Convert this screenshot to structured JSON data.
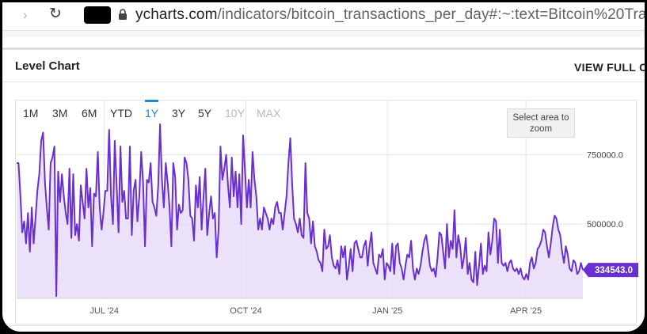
{
  "browser": {
    "url_host": "ycharts.com",
    "url_path": "/indicators/bitcoin_transactions_per_day#:~:text=Bitcoin%20Tra"
  },
  "card": {
    "title": "Level Chart",
    "view_full": "VIEW FULL CHA"
  },
  "ranges": [
    {
      "label": "1M",
      "state": "normal"
    },
    {
      "label": "3M",
      "state": "normal"
    },
    {
      "label": "6M",
      "state": "normal"
    },
    {
      "label": "YTD",
      "state": "normal"
    },
    {
      "label": "1Y",
      "state": "active"
    },
    {
      "label": "3Y",
      "state": "normal"
    },
    {
      "label": "5Y",
      "state": "normal"
    },
    {
      "label": "10Y",
      "state": "disabled"
    },
    {
      "label": "MAX",
      "state": "disabled"
    }
  ],
  "zoom_hint": "Select area to zoom",
  "colors": {
    "line": "#6a2fd0",
    "fill": "#e7dcf7",
    "active": "#1a8ad8",
    "grid": "#e3e3e3"
  },
  "chart_data": {
    "type": "area",
    "title": "",
    "xlabel": "",
    "ylabel": "",
    "ylim": [
      232000,
      860000
    ],
    "yticks": [
      {
        "value": 500000,
        "label": "500000.0"
      },
      {
        "value": 750000,
        "label": "750000.0"
      }
    ],
    "xticks": [
      {
        "date": "2024-07-01",
        "label": "JUL '24"
      },
      {
        "date": "2024-10-01",
        "label": "OCT '24"
      },
      {
        "date": "2025-01-01",
        "label": "JAN '25"
      },
      {
        "date": "2025-04-01",
        "label": "APR '25"
      }
    ],
    "xrange": [
      "2024-05-05",
      "2025-05-08"
    ],
    "last_value_label": "334543.0",
    "series": [
      {
        "values": [
          720000,
          720000,
          600000,
          470000,
          510000,
          430000,
          540000,
          400000,
          560000,
          430000,
          520000,
          620000,
          680000,
          800000,
          830000,
          650000,
          560000,
          480000,
          720000,
          740000,
          780000,
          240000,
          690000,
          580000,
          680000,
          600000,
          540000,
          500000,
          700000,
          450000,
          680000,
          460000,
          500000,
          440000,
          640000,
          580000,
          520000,
          700000,
          560000,
          630000,
          420000,
          610000,
          600000,
          760000,
          560000,
          480000,
          540000,
          620000,
          620000,
          840000,
          600000,
          500000,
          800000,
          640000,
          470000,
          780000,
          580000,
          620000,
          520000,
          520000,
          780000,
          460000,
          620000,
          660000,
          510000,
          600000,
          760000,
          650000,
          420000,
          660000,
          650000,
          720000,
          580000,
          560000,
          530000,
          640000,
          900000,
          660000,
          560000,
          720000,
          650000,
          560000,
          420000,
          720000,
          670000,
          480000,
          570000,
          540000,
          550000,
          740000,
          720000,
          660000,
          530000,
          520000,
          440000,
          640000,
          560000,
          670000,
          480000,
          600000,
          700000,
          460000,
          540000,
          600000,
          520000,
          540000,
          380000,
          480000,
          780000,
          660000,
          700000,
          750000,
          640000,
          560000,
          740000,
          600000,
          690000,
          560000,
          680000,
          500000,
          820000,
          690000,
          560000,
          660000,
          560000,
          760000,
          660000,
          600000,
          480000,
          520000,
          480000,
          560000,
          540000,
          520000,
          480000,
          520000,
          500000,
          560000,
          580000,
          540000,
          540000,
          480000,
          540000,
          600000,
          720000,
          810000,
          640000,
          520000,
          500000,
          470000,
          520000,
          460000,
          450000,
          720000,
          540000,
          520000,
          430000,
          510000,
          420000,
          400000,
          370000,
          360000,
          330000,
          480000,
          410000,
          420000,
          460000,
          380000,
          350000,
          340000,
          370000,
          320000,
          420000,
          380000,
          420000,
          300000,
          350000,
          410000,
          330000,
          430000,
          440000,
          410000,
          380000,
          380000,
          420000,
          440000,
          350000,
          420000,
          470000,
          360000,
          340000,
          320000,
          390000,
          380000,
          410000,
          300000,
          360000,
          350000,
          330000,
          430000,
          320000,
          420000,
          430000,
          360000,
          340000,
          300000,
          350000,
          390000,
          380000,
          440000,
          340000,
          300000,
          340000,
          320000,
          350000,
          400000,
          440000,
          460000,
          410000,
          350000,
          330000,
          340000,
          310000,
          380000,
          470000,
          460000,
          400000,
          340000,
          500000,
          380000,
          440000,
          410000,
          550000,
          380000,
          460000,
          420000,
          340000,
          380000,
          450000,
          320000,
          360000,
          300000,
          290000,
          400000,
          280000,
          350000,
          430000,
          320000,
          350000,
          330000,
          470000,
          390000,
          440000,
          520000,
          510000,
          360000,
          480000,
          360000,
          350000,
          360000,
          330000,
          360000,
          370000,
          340000,
          330000,
          340000,
          320000,
          340000,
          310000,
          300000,
          320000,
          300000,
          360000,
          380000,
          340000,
          360000,
          410000,
          420000,
          440000,
          480000,
          470000,
          420000,
          380000,
          430000,
          490000,
          530000,
          520000,
          480000,
          460000,
          400000,
          360000,
          420000,
          390000,
          340000,
          330000,
          370000,
          360000,
          320000,
          330000,
          360000,
          334543
        ]
      }
    ]
  }
}
